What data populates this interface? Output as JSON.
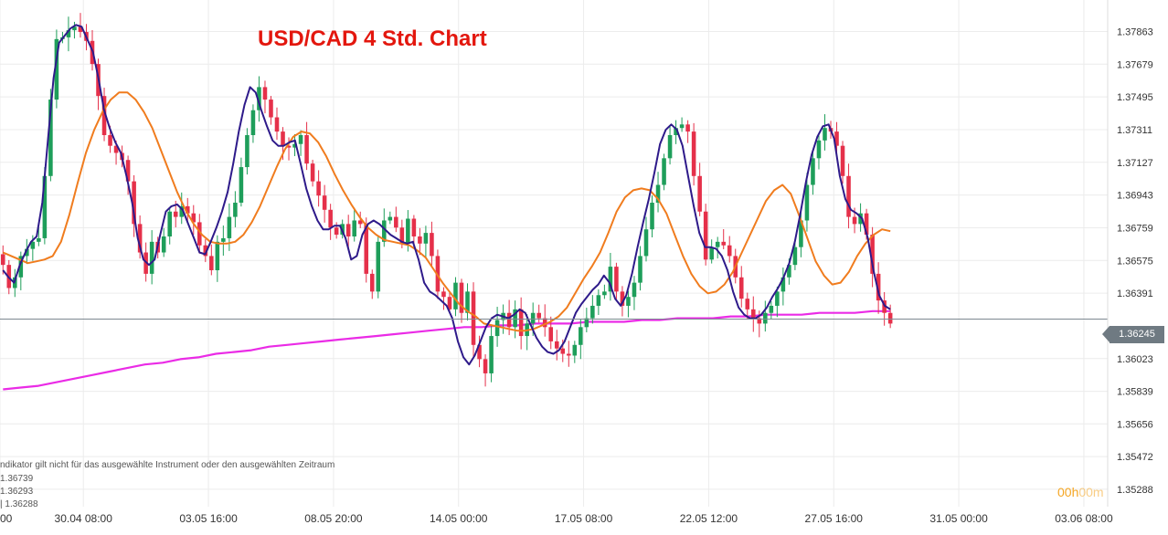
{
  "title": "USD/CAD 4 Std. Chart",
  "info_lines": [
    "ndikator gilt nicht für das ausgewählte Instrument oder den ausgewählten Zeitraum",
    "1.36739",
    "1.36293",
    "| 1.36288"
  ],
  "countdown": {
    "hours": "00h",
    "minutes": "00m"
  },
  "colors": {
    "up_candle": "#1e9e5a",
    "down_candle": "#e5304a",
    "ma_fast": "#2e1a8a",
    "ma_slow": "#f07c1e",
    "ma_long": "#ea2be6",
    "title": "#e3170e",
    "grid": "#ececec",
    "price_tag": "#6f7a82"
  },
  "chart_data": {
    "type": "candlestick",
    "title": "USD/CAD 4 Std. Chart",
    "ylim": [
      1.3519,
      1.3804
    ],
    "y_ticks": [
      {
        "value": 1.37863,
        "label": "1.37863"
      },
      {
        "value": 1.37679,
        "label": "1.37679"
      },
      {
        "value": 1.37495,
        "label": "1.37495"
      },
      {
        "value": 1.37311,
        "label": "1.37311"
      },
      {
        "value": 1.37127,
        "label": "1.37127"
      },
      {
        "value": 1.36943,
        "label": "1.36943"
      },
      {
        "value": 1.36759,
        "label": "1.36759"
      },
      {
        "value": 1.36575,
        "label": "1.36575"
      },
      {
        "value": 1.36391,
        "label": "1.36391"
      },
      {
        "value": 1.36023,
        "label": "1.36023"
      },
      {
        "value": 1.35839,
        "label": "1.35839"
      },
      {
        "value": 1.35656,
        "label": "1.35656"
      },
      {
        "value": 1.35472,
        "label": "1.35472"
      },
      {
        "value": 1.35288,
        "label": "1.35288"
      }
    ],
    "x_ticks": [
      {
        "index": 0,
        "label": "00"
      },
      {
        "index": 14,
        "label": "30.04 08:00"
      },
      {
        "index": 35,
        "label": "03.05 16:00"
      },
      {
        "index": 56,
        "label": "08.05 20:00"
      },
      {
        "index": 77,
        "label": "14.05 00:00"
      },
      {
        "index": 98,
        "label": "17.05 08:00"
      },
      {
        "index": 119,
        "label": "22.05 12:00"
      },
      {
        "index": 140,
        "label": "27.05 16:00"
      },
      {
        "index": 161,
        "label": "31.05 00:00"
      },
      {
        "index": 182,
        "label": "03.06 08:00"
      }
    ],
    "x_range": [
      0,
      186
    ],
    "current_price": {
      "value": 1.36245,
      "label": "1.36245"
    },
    "series_fast_ma": [
      1.3652,
      1.3648,
      1.3645,
      1.3655,
      1.3662,
      1.3668,
      1.3671,
      1.369,
      1.3725,
      1.376,
      1.378,
      1.3784,
      1.3788,
      1.379,
      1.3789,
      1.3782,
      1.3775,
      1.376,
      1.3742,
      1.3732,
      1.3724,
      1.3718,
      1.3705,
      1.369,
      1.367,
      1.3658,
      1.3655,
      1.3658,
      1.3672,
      1.3685,
      1.3688,
      1.3689,
      1.3686,
      1.3678,
      1.367,
      1.3662,
      1.3661,
      1.3668,
      1.3676,
      1.3685,
      1.3696,
      1.3712,
      1.373,
      1.3745,
      1.3755,
      1.3752,
      1.3742,
      1.3733,
      1.3725,
      1.3722,
      1.3722,
      1.3724,
      1.3725,
      1.3712,
      1.3698,
      1.3688,
      1.368,
      1.3675,
      1.3675,
      1.3677,
      1.3677,
      1.367,
      1.3658,
      1.366,
      1.3672,
      1.3678,
      1.368,
      1.3678,
      1.3675,
      1.3672,
      1.367,
      1.3668,
      1.3667,
      1.3668,
      1.3658,
      1.3645,
      1.364,
      1.3638,
      1.3635,
      1.3632,
      1.3625,
      1.3612,
      1.3603,
      1.3599,
      1.3604,
      1.3612,
      1.362,
      1.3625,
      1.3627,
      1.3626,
      1.3625,
      1.3627,
      1.363,
      1.3628,
      1.3621,
      1.3614,
      1.3609,
      1.3606,
      1.3605,
      1.3607,
      1.3612,
      1.362,
      1.3628,
      1.3633,
      1.3637,
      1.3641,
      1.3644,
      1.3649,
      1.3645,
      1.3636,
      1.3632,
      1.3638,
      1.365,
      1.3665,
      1.3679,
      1.3692,
      1.3707,
      1.3723,
      1.3731,
      1.3734,
      1.3731,
      1.3722,
      1.3705,
      1.3688,
      1.3673,
      1.3665,
      1.3665,
      1.3664,
      1.366,
      1.3652,
      1.364,
      1.3631,
      1.3627,
      1.3625,
      1.3625,
      1.3627,
      1.3631,
      1.3637,
      1.3642,
      1.3648,
      1.3656,
      1.3668,
      1.3684,
      1.3702,
      1.3717,
      1.3727,
      1.3733,
      1.3734,
      1.3726,
      1.3705,
      1.3692,
      1.3686,
      1.3684,
      1.3681,
      1.367,
      1.3652,
      1.3638,
      1.3632,
      1.363
    ],
    "series_slow_ma": [
      1.3662,
      1.366,
      1.3658,
      1.3656,
      1.3657,
      1.3658,
      1.366,
      1.3668,
      1.3683,
      1.3701,
      1.3718,
      1.3731,
      1.3741,
      1.3748,
      1.3752,
      1.3752,
      1.3748,
      1.3741,
      1.3732,
      1.372,
      1.3708,
      1.3696,
      1.3686,
      1.3678,
      1.3672,
      1.3668,
      1.3667,
      1.3667,
      1.3668,
      1.3672,
      1.3679,
      1.3688,
      1.3699,
      1.371,
      1.372,
      1.3727,
      1.373,
      1.3729,
      1.3724,
      1.3716,
      1.3706,
      1.3697,
      1.3689,
      1.3682,
      1.3676,
      1.3672,
      1.3669,
      1.3668,
      1.3667,
      1.3666,
      1.3663,
      1.3659,
      1.3652,
      1.3645,
      1.3639,
      1.3633,
      1.3629,
      1.3626,
      1.3622,
      1.3621,
      1.362,
      1.3619,
      1.3618,
      1.3618,
      1.3619,
      1.3621,
      1.3623,
      1.3626,
      1.3631,
      1.3639,
      1.3647,
      1.3654,
      1.3662,
      1.3673,
      1.3685,
      1.3693,
      1.3697,
      1.3698,
      1.3697,
      1.3692,
      1.3684,
      1.3672,
      1.366,
      1.365,
      1.3643,
      1.3639,
      1.364,
      1.3644,
      1.3651,
      1.3661,
      1.3671,
      1.3681,
      1.3691,
      1.3697,
      1.37,
      1.3695,
      1.3683,
      1.367,
      1.3657,
      1.3649,
      1.3644,
      1.3645,
      1.3651,
      1.366,
      1.3667,
      1.3672,
      1.3675,
      1.3674
    ],
    "series_long_ma": [
      1.3585,
      1.3586,
      1.3587,
      1.3589,
      1.3591,
      1.3593,
      1.3595,
      1.3597,
      1.3599,
      1.36,
      1.3602,
      1.3603,
      1.3605,
      1.3606,
      1.3607,
      1.3609,
      1.361,
      1.3611,
      1.3612,
      1.3613,
      1.3614,
      1.3615,
      1.3616,
      1.3617,
      1.3618,
      1.3619,
      1.362,
      1.362,
      1.3621,
      1.3621,
      1.3622,
      1.3622,
      1.3622,
      1.3623,
      1.3623,
      1.3623,
      1.3624,
      1.3624,
      1.3625,
      1.3625,
      1.3625,
      1.3626,
      1.3626,
      1.3627,
      1.3627,
      1.3627,
      1.3628,
      1.3628,
      1.3628,
      1.3629,
      1.3629
    ],
    "candle_closes": [
      1.3655,
      1.3642,
      1.3648,
      1.366,
      1.3664,
      1.3668,
      1.367,
      1.3705,
      1.3748,
      1.3782,
      1.3783,
      1.3787,
      1.3789,
      1.3786,
      1.3781,
      1.3768,
      1.375,
      1.3728,
      1.3722,
      1.3718,
      1.3714,
      1.3702,
      1.3678,
      1.3662,
      1.365,
      1.3668,
      1.3662,
      1.3671,
      1.3685,
      1.3682,
      1.3688,
      1.3684,
      1.3679,
      1.3666,
      1.366,
      1.3652,
      1.3668,
      1.367,
      1.3682,
      1.369,
      1.371,
      1.3728,
      1.3742,
      1.3755,
      1.3748,
      1.3738,
      1.373,
      1.3722,
      1.3721,
      1.3723,
      1.3728,
      1.3712,
      1.3702,
      1.3694,
      1.3686,
      1.3676,
      1.3672,
      1.3678,
      1.3671,
      1.368,
      1.3678,
      1.365,
      1.364,
      1.3668,
      1.368,
      1.3682,
      1.3676,
      1.3667,
      1.3681,
      1.3671,
      1.3667,
      1.3673,
      1.366,
      1.364,
      1.3637,
      1.363,
      1.3645,
      1.3628,
      1.364,
      1.361,
      1.3602,
      1.3594,
      1.3615,
      1.3624,
      1.3628,
      1.362,
      1.363,
      1.3615,
      1.3622,
      1.3628,
      1.3625,
      1.362,
      1.3612,
      1.3608,
      1.3605,
      1.3604,
      1.361,
      1.362,
      1.3625,
      1.3632,
      1.3638,
      1.364,
      1.3654,
      1.364,
      1.3632,
      1.3637,
      1.3645,
      1.366,
      1.3675,
      1.369,
      1.37,
      1.3715,
      1.3728,
      1.3732,
      1.3734,
      1.373,
      1.3705,
      1.3685,
      1.3658,
      1.3665,
      1.3668,
      1.3666,
      1.366,
      1.3648,
      1.3636,
      1.363,
      1.3625,
      1.3622,
      1.3628,
      1.3632,
      1.364,
      1.3648,
      1.3655,
      1.3665,
      1.368,
      1.37,
      1.3715,
      1.3725,
      1.3732,
      1.373,
      1.3722,
      1.3705,
      1.3682,
      1.3678,
      1.3684,
      1.3672,
      1.365,
      1.3635,
      1.3628,
      1.3622
    ]
  }
}
